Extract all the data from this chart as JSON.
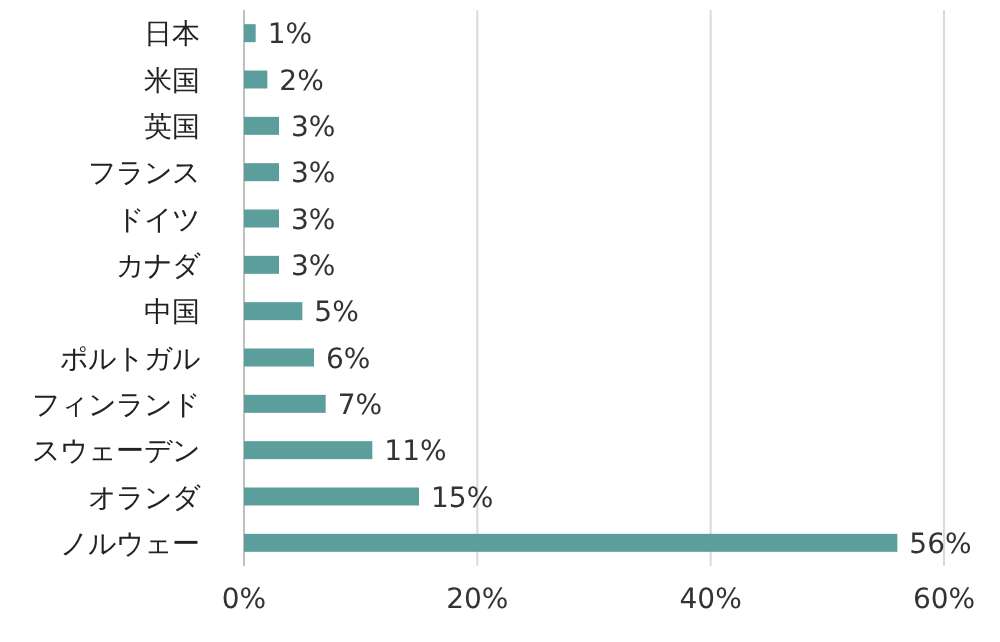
{
  "chart_data": {
    "type": "bar",
    "orientation": "horizontal",
    "categories": [
      "日本",
      "米国",
      "英国",
      "フランス",
      "ドイツ",
      "カナダ",
      "中国",
      "ポルトガル",
      "フィンランド",
      "スウェーデン",
      "オランダ",
      "ノルウェー"
    ],
    "values": [
      1,
      2,
      3,
      3,
      3,
      3,
      5,
      6,
      7,
      11,
      15,
      56
    ],
    "value_labels": [
      "1%",
      "2%",
      "3%",
      "3%",
      "3%",
      "3%",
      "5%",
      "6%",
      "7%",
      "11%",
      "15%",
      "56%"
    ],
    "color": "#5b9e9c",
    "xlim": [
      0,
      60
    ],
    "xticks": [
      {
        "value": 0,
        "label": "0%"
      },
      {
        "value": 20,
        "label": "20%"
      },
      {
        "value": 40,
        "label": "40%"
      },
      {
        "value": 60,
        "label": "60%"
      }
    ],
    "grid": "x"
  }
}
